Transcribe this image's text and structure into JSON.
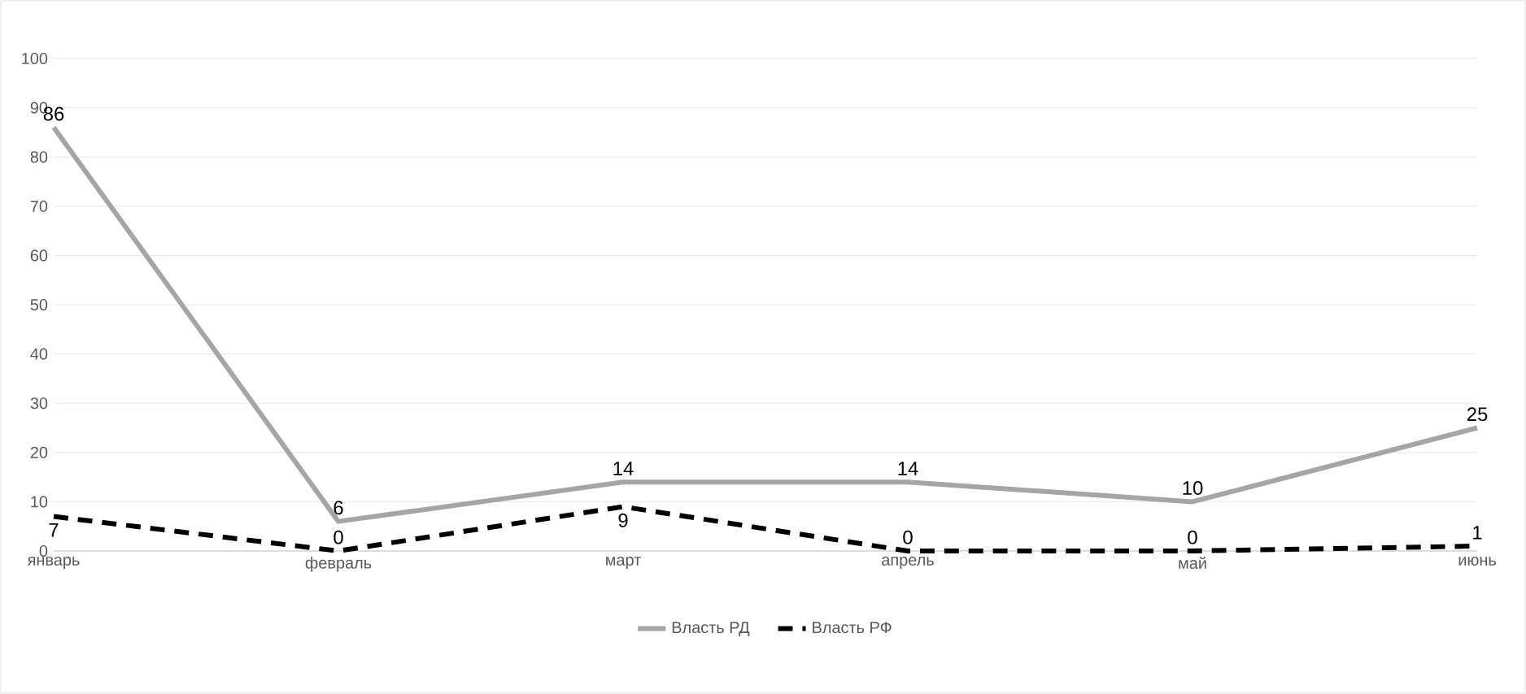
{
  "chart_data": {
    "type": "line",
    "categories": [
      "январь",
      "февраль",
      "март",
      "апрель",
      "май",
      "июнь"
    ],
    "series": [
      {
        "name": "Власть РД",
        "color": "#a5a5a5",
        "line_style": "solid",
        "values": [
          86,
          6,
          14,
          14,
          10,
          25
        ]
      },
      {
        "name": "Власть РФ",
        "color": "#000000",
        "line_style": "dashed",
        "values": [
          7,
          0,
          9,
          0,
          0,
          1
        ]
      }
    ],
    "ylim": [
      0,
      100
    ],
    "yticks": [
      0,
      10,
      20,
      30,
      40,
      50,
      60,
      70,
      80,
      90,
      100
    ],
    "grid": "y",
    "legend": "bottom",
    "marker": "none",
    "data_labels": true
  }
}
